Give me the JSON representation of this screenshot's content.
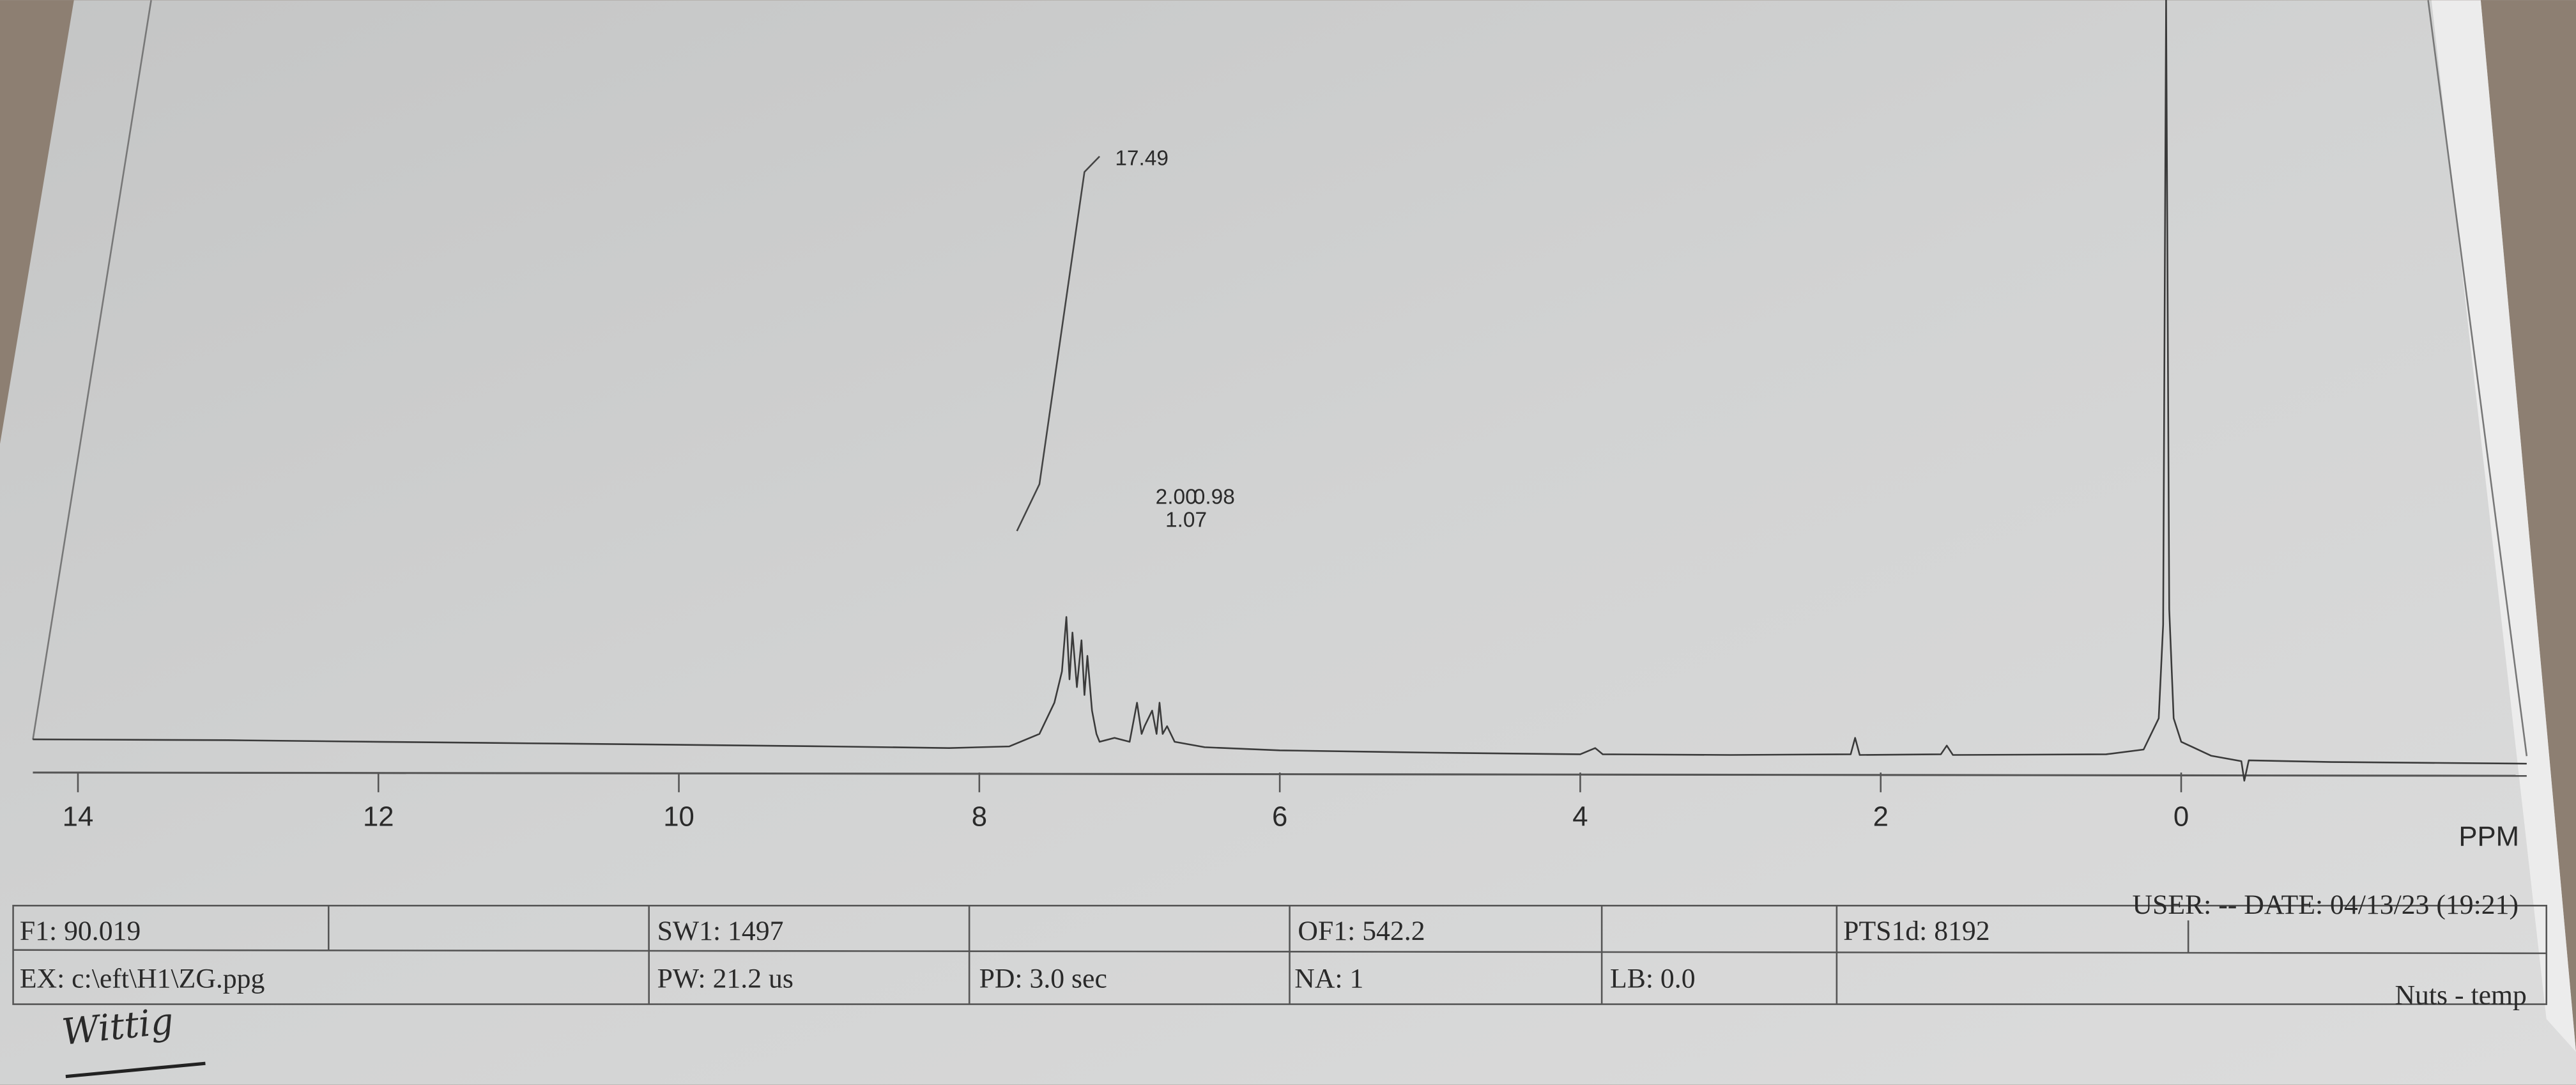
{
  "chart_data": {
    "type": "line",
    "xlabel": "PPM",
    "xlim": [
      14.3,
      -2.3
    ],
    "xticks": [
      14,
      12,
      10,
      8,
      6,
      4,
      2,
      0
    ],
    "ylim": [
      0,
      100
    ],
    "series": [
      {
        "name": "spectrum",
        "color": "#3a3a3a",
        "x": [
          14.3,
          13,
          12,
          11,
          10,
          9,
          8.2,
          7.8,
          7.6,
          7.5,
          7.45,
          7.42,
          7.4,
          7.38,
          7.35,
          7.32,
          7.3,
          7.28,
          7.25,
          7.22,
          7.2,
          7.1,
          7.0,
          6.95,
          6.92,
          6.9,
          6.85,
          6.82,
          6.8,
          6.78,
          6.75,
          6.7,
          6.5,
          6,
          5,
          4,
          3.9,
          3.85,
          3,
          2.2,
          2.17,
          2.14,
          1.6,
          1.56,
          1.52,
          0.5,
          0.25,
          0.15,
          0.12,
          0.1,
          0.08,
          0.05,
          0,
          -0.2,
          -0.4,
          -0.42,
          -0.45,
          -1,
          -2.3
        ],
        "values": [
          5.3,
          5.2,
          5.0,
          4.8,
          4.6,
          4.4,
          4.2,
          4.4,
          6,
          10,
          14,
          21,
          13,
          19,
          12,
          18,
          11,
          16,
          9,
          6,
          5,
          5.5,
          5,
          10,
          6,
          7,
          9,
          6,
          10,
          6,
          7,
          5,
          4.3,
          3.9,
          3.6,
          3.4,
          4.2,
          3.4,
          3.3,
          3.4,
          5.5,
          3.3,
          3.4,
          4.5,
          3.3,
          3.4,
          4,
          8,
          20,
          100,
          22,
          8,
          5,
          3.2,
          2.5,
          0,
          2.6,
          2.4,
          2.2
        ]
      },
      {
        "name": "integral",
        "color": "#444444",
        "x": [
          7.75,
          7.6,
          7.45,
          7.3,
          7.2
        ],
        "values": [
          32,
          38,
          58,
          78,
          80
        ]
      }
    ],
    "annotations": [
      "17.49",
      "2.00",
      "0.98",
      "1.07"
    ]
  },
  "parameters": {
    "user_date": "USER:  -- DATE: 04/13/23  (19:21)",
    "row1": [
      "F1: 90.019",
      "SW1: 1497",
      "OF1: 542.2",
      "PTS1d: 8192"
    ],
    "row2": [
      "EX: c:\\eft\\H1\\ZG.ppg",
      "PW: 21.2 us",
      "PD: 3.0   sec",
      "NA: 1",
      "LB: 0.0",
      "Nuts - temp"
    ]
  },
  "handwritten_note": "Wittig"
}
